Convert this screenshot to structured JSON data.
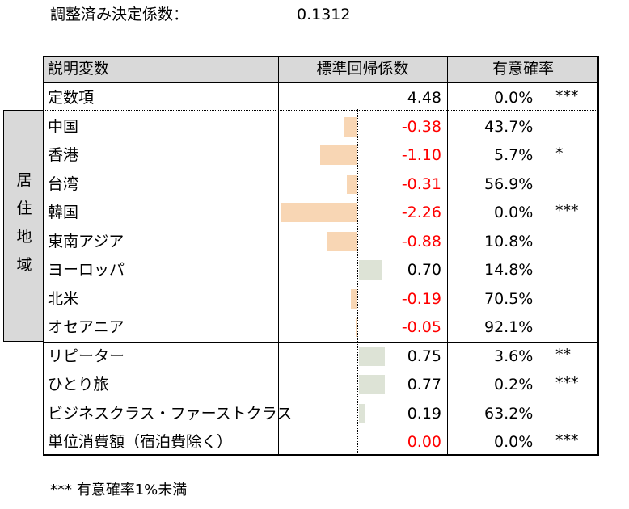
{
  "adjusted_r2": {
    "label": "調整済み決定係数：",
    "value": "0.1312"
  },
  "table": {
    "headers": {
      "variable": "説明変数",
      "coefficient": "標準回帰係数",
      "significance": "有意確率"
    },
    "group_label": [
      "居",
      "住",
      "地",
      "域"
    ],
    "rows": [
      {
        "name": "定数項",
        "coef": "4.48",
        "coef_value": 4.48,
        "pval": "0.0%",
        "stars": "***",
        "bar": false
      },
      {
        "name": "中国",
        "coef": "-0.38",
        "coef_value": -0.38,
        "pval": "43.7%",
        "stars": "",
        "bar": true
      },
      {
        "name": "香港",
        "coef": "-1.10",
        "coef_value": -1.1,
        "pval": "5.7%",
        "stars": "*",
        "bar": true
      },
      {
        "name": "台湾",
        "coef": "-0.31",
        "coef_value": -0.31,
        "pval": "56.9%",
        "stars": "",
        "bar": true
      },
      {
        "name": "韓国",
        "coef": "-2.26",
        "coef_value": -2.26,
        "pval": "0.0%",
        "stars": "***",
        "bar": true
      },
      {
        "name": "東南アジア",
        "coef": "-0.88",
        "coef_value": -0.88,
        "pval": "10.8%",
        "stars": "",
        "bar": true
      },
      {
        "name": "ヨーロッパ",
        "coef": "0.70",
        "coef_value": 0.7,
        "pval": "14.8%",
        "stars": "",
        "bar": true
      },
      {
        "name": "北米",
        "coef": "-0.19",
        "coef_value": -0.19,
        "pval": "70.5%",
        "stars": "",
        "bar": true
      },
      {
        "name": "オセアニア",
        "coef": "-0.05",
        "coef_value": -0.05,
        "pval": "92.1%",
        "stars": "",
        "bar": true
      },
      {
        "name": "リピーター",
        "coef": "0.75",
        "coef_value": 0.75,
        "pval": "3.6%",
        "stars": "**",
        "bar": true
      },
      {
        "name": "ひとり旅",
        "coef": "0.77",
        "coef_value": 0.77,
        "pval": "0.2%",
        "stars": "***",
        "bar": true
      },
      {
        "name": "ビジネスクラス・ファーストクラス",
        "coef": "0.19",
        "coef_value": 0.19,
        "pval": "63.2%",
        "stars": "",
        "bar": true
      },
      {
        "name": "単位消費額（宿泊費除く）",
        "coef": "0.00",
        "coef_value": 0.0,
        "pval": "0.0%",
        "stars": "***",
        "bar": true,
        "coef_color": "#ff0000"
      }
    ]
  },
  "colors": {
    "negative_bar": "#f8d6b4",
    "positive_bar": "#dde3d6",
    "negative_text": "#ff0000",
    "header_bg": "#d9d9d9"
  },
  "note": "*** 有意確率1%未満"
}
